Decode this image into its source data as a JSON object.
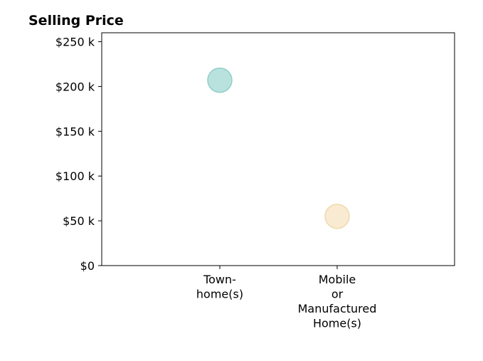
{
  "chart_data": {
    "type": "scatter",
    "title": "Selling Price",
    "xlabel": "",
    "ylabel": "",
    "categories": [
      [
        "Town-",
        "home(s)"
      ],
      [
        "Mobile",
        "or",
        "Manufactured",
        "Home(s)"
      ]
    ],
    "points": [
      {
        "category_index": 0,
        "value": 207000,
        "color": "#a8dbd6"
      },
      {
        "category_index": 1,
        "value": 55000,
        "color": "#f7e6c6"
      }
    ],
    "y_ticks": [
      0,
      50000,
      100000,
      150000,
      200000,
      250000
    ],
    "y_tick_labels": [
      "$0",
      "$50 k",
      "$100 k",
      "$150 k",
      "$200 k",
      "$250 k"
    ],
    "ylim": [
      0,
      260000
    ],
    "grid": false,
    "legend": "none"
  }
}
